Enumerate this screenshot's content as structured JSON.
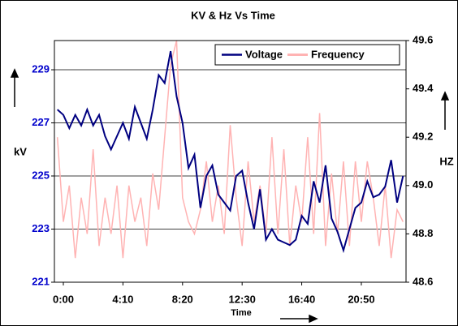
{
  "chart_data": {
    "type": "line",
    "title": "KV & Hz Vs Time",
    "x_label": "Time",
    "y_label": "kV",
    "y2_label": "HZ",
    "categories": [
      null,
      "0:00",
      null,
      null,
      null,
      null,
      null,
      null,
      null,
      null,
      null,
      "4:10",
      null,
      null,
      null,
      null,
      null,
      null,
      null,
      null,
      null,
      "8:20",
      null,
      null,
      null,
      null,
      null,
      null,
      null,
      null,
      null,
      "12:30",
      null,
      null,
      null,
      null,
      null,
      null,
      null,
      null,
      null,
      "16:40",
      null,
      null,
      null,
      null,
      null,
      null,
      null,
      null,
      null,
      "20:50",
      null,
      null,
      null,
      null,
      null,
      null,
      null
    ],
    "series": [
      {
        "name": "Voltage",
        "color": "#000080",
        "axis": "y",
        "values": [
          227.5,
          227.3,
          226.8,
          227.3,
          226.9,
          227.5,
          226.9,
          227.3,
          226.5,
          226.0,
          226.5,
          227.0,
          226.4,
          227.6,
          227.0,
          226.4,
          227.5,
          228.8,
          228.5,
          229.7,
          228.0,
          227.0,
          225.3,
          225.8,
          223.8,
          225.0,
          225.4,
          224.3,
          224.0,
          223.7,
          225.0,
          225.2,
          224.0,
          223.0,
          224.5,
          222.6,
          223.0,
          222.6,
          222.5,
          222.4,
          222.6,
          223.5,
          223.2,
          224.8,
          224.0,
          225.4,
          223.4,
          222.9,
          222.2,
          223.0,
          223.8,
          224.0,
          224.8,
          224.2,
          224.3,
          224.6,
          225.6,
          224.0,
          225.0
        ]
      },
      {
        "name": "Frequency",
        "color": "#ffb3b3",
        "axis": "y2",
        "values": [
          49.2,
          48.85,
          49.0,
          48.7,
          48.95,
          48.8,
          49.15,
          48.75,
          48.95,
          48.8,
          49.0,
          48.7,
          49.0,
          48.85,
          48.95,
          48.75,
          49.05,
          48.9,
          49.2,
          49.5,
          49.6,
          48.95,
          48.85,
          48.8,
          48.9,
          49.1,
          48.85,
          49.0,
          48.8,
          49.25,
          48.95,
          48.75,
          49.1,
          48.85,
          49.0,
          48.8,
          49.2,
          48.8,
          49.15,
          48.75,
          49.0,
          48.85,
          49.2,
          48.8,
          49.3,
          48.75,
          49.05,
          48.8,
          49.1,
          48.75,
          49.1,
          48.85,
          49.1,
          48.95,
          48.75,
          49.0,
          48.7,
          48.9,
          48.85
        ]
      }
    ],
    "ylim": [
      221,
      230.1
    ],
    "yticks": [
      221,
      223,
      225,
      227,
      229
    ],
    "y2lim": [
      48.6,
      49.6
    ],
    "y2ticks": [
      {
        "value": 48.6,
        "label": "48.6"
      },
      {
        "value": 48.8,
        "label": "48.8"
      },
      {
        "value": 49.0,
        "label": "49.0"
      },
      {
        "value": 49.2,
        "label": "49.2"
      },
      {
        "value": 49.4,
        "label": "49.4"
      },
      {
        "value": 49.6,
        "label": "49.6"
      }
    ],
    "grid": true,
    "legend": "top-right"
  }
}
